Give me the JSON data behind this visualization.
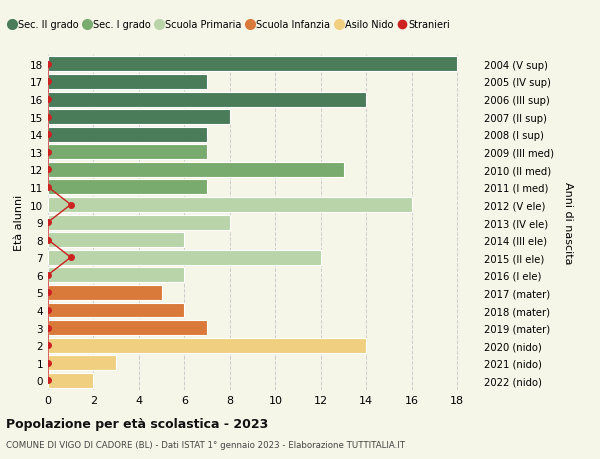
{
  "ages": [
    18,
    17,
    16,
    15,
    14,
    13,
    12,
    11,
    10,
    9,
    8,
    7,
    6,
    5,
    4,
    3,
    2,
    1,
    0
  ],
  "right_labels": [
    "2004 (V sup)",
    "2005 (IV sup)",
    "2006 (III sup)",
    "2007 (II sup)",
    "2008 (I sup)",
    "2009 (III med)",
    "2010 (II med)",
    "2011 (I med)",
    "2012 (V ele)",
    "2013 (IV ele)",
    "2014 (III ele)",
    "2015 (II ele)",
    "2016 (I ele)",
    "2017 (mater)",
    "2018 (mater)",
    "2019 (mater)",
    "2020 (nido)",
    "2021 (nido)",
    "2022 (nido)"
  ],
  "bar_values": [
    18,
    7,
    14,
    8,
    7,
    7,
    13,
    7,
    16,
    8,
    6,
    12,
    6,
    5,
    6,
    7,
    14,
    3,
    2
  ],
  "bar_colors": [
    "#4a7c59",
    "#4a7c59",
    "#4a7c59",
    "#4a7c59",
    "#4a7c59",
    "#7aab6e",
    "#7aab6e",
    "#7aab6e",
    "#b8d4a8",
    "#b8d4a8",
    "#b8d4a8",
    "#b8d4a8",
    "#b8d4a8",
    "#d97a3a",
    "#d97a3a",
    "#d97a3a",
    "#f0d080",
    "#f0d080",
    "#f0d080"
  ],
  "stranieri_x": [
    0,
    0,
    0,
    0,
    0,
    0,
    0,
    0,
    1,
    0,
    0,
    1,
    0,
    0,
    0,
    0,
    0,
    0,
    0
  ],
  "stranieri_ages": [
    18,
    17,
    16,
    15,
    14,
    13,
    12,
    11,
    10,
    9,
    8,
    7,
    6,
    5,
    4,
    3,
    2,
    1,
    0
  ],
  "legend_labels": [
    "Sec. II grado",
    "Sec. I grado",
    "Scuola Primaria",
    "Scuola Infanzia",
    "Asilo Nido",
    "Stranieri"
  ],
  "legend_colors": [
    "#4a7c59",
    "#7aab6e",
    "#b8d4a8",
    "#d97a3a",
    "#f0d080",
    "#cc2222"
  ],
  "xlabel_left": "Età alunni",
  "xlabel_right": "Anni di nascita",
  "title": "Popolazione per età scolastica - 2023",
  "subtitle": "COMUNE DI VIGO DI CADORE (BL) - Dati ISTAT 1° gennaio 2023 - Elaborazione TUTTITALIA.IT",
  "xlim": [
    0,
    19
  ],
  "xticks": [
    0,
    2,
    4,
    6,
    8,
    10,
    12,
    14,
    16,
    18
  ],
  "background_color": "#f5f5e8",
  "bar_edge_color": "white",
  "grid_color": "#cccccc"
}
